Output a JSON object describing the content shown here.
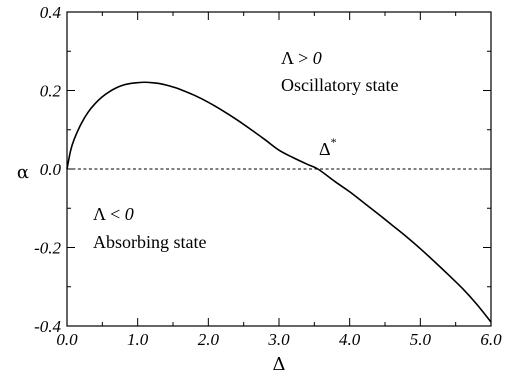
{
  "chart_data": {
    "type": "line",
    "title": "",
    "xlabel": "Δ",
    "ylabel": "α",
    "xlim": [
      0.0,
      6.0
    ],
    "ylim": [
      -0.4,
      0.4
    ],
    "x_ticks": [
      0.0,
      1.0,
      2.0,
      3.0,
      4.0,
      5.0,
      6.0
    ],
    "x_tick_labels": [
      "0.0",
      "1.0",
      "2.0",
      "3.0",
      "4.0",
      "5.0",
      "6.0"
    ],
    "y_ticks": [
      -0.4,
      -0.2,
      0.0,
      0.2,
      0.4
    ],
    "y_tick_labels": [
      "-0.4",
      "-0.2",
      "0.0",
      "0.2",
      "0.4"
    ],
    "grid": false,
    "series": [
      {
        "style": "solid",
        "color": "#000000",
        "x": [
          0.0,
          0.05,
          0.1,
          0.2,
          0.3,
          0.4,
          0.5,
          0.6,
          0.7,
          0.8,
          0.9,
          1.0,
          1.1,
          1.2,
          1.3,
          1.4,
          1.5,
          1.6,
          1.8,
          2.0,
          2.2,
          2.4,
          2.6,
          2.8,
          3.0,
          3.2,
          3.4,
          3.55,
          3.8,
          4.0,
          4.2,
          4.4,
          4.6,
          4.8,
          5.0,
          5.2,
          5.4,
          5.6,
          5.8,
          6.0
        ],
        "y": [
          0.0,
          0.046,
          0.075,
          0.115,
          0.145,
          0.167,
          0.184,
          0.197,
          0.207,
          0.214,
          0.218,
          0.22,
          0.221,
          0.22,
          0.218,
          0.214,
          0.209,
          0.203,
          0.188,
          0.17,
          0.149,
          0.126,
          0.101,
          0.075,
          0.048,
          0.029,
          0.012,
          0.0,
          -0.033,
          -0.058,
          -0.086,
          -0.114,
          -0.143,
          -0.172,
          -0.203,
          -0.236,
          -0.27,
          -0.305,
          -0.345,
          -0.39
        ]
      },
      {
        "style": "dashed",
        "color": "#000000",
        "x": [
          0.0,
          6.0
        ],
        "y": [
          0.0,
          0.0
        ]
      }
    ],
    "annotations": [
      {
        "lambda": "Λ",
        "relation": " > ",
        "value": "0",
        "state": "Oscillatory state"
      },
      {
        "lambda": "Λ",
        "relation": " < ",
        "value": "0",
        "state": "Absorbing state"
      },
      {
        "text": "Δ",
        "superscript": "*"
      }
    ]
  }
}
